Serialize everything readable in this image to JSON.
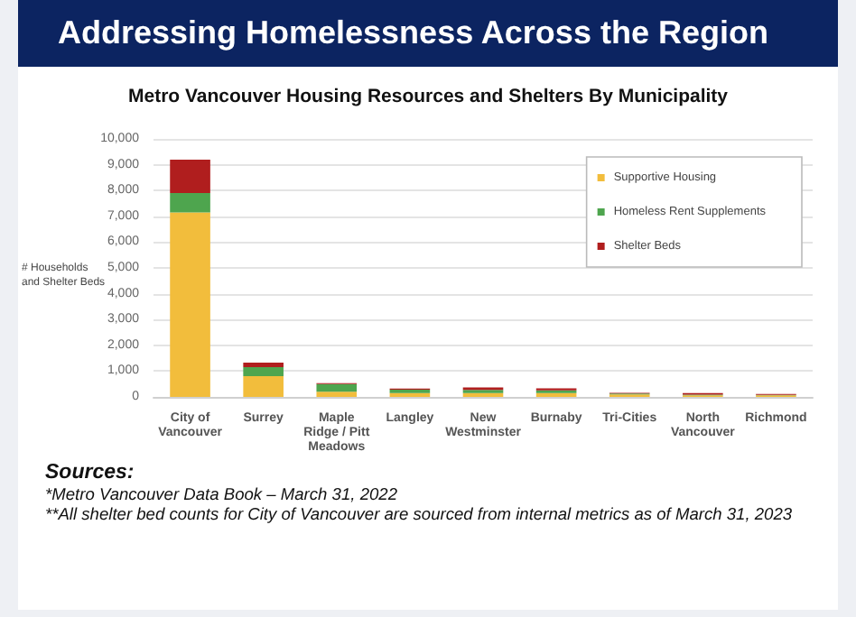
{
  "chart_data": {
    "type": "bar",
    "title": "Addressing Homelessness Across the Region",
    "subtitle": "Metro Vancouver Housing Resources and Shelters By Municipality",
    "ylabel": "# Households\nand Shelter Beds",
    "categories": [
      "City of\nVancouver",
      "Surrey",
      "Maple\nRidge / Pitt\nMeadows",
      "Langley",
      "New\nWestminster",
      "Burnaby",
      "Tri-Cities",
      "North\nVancouver",
      "Richmond"
    ],
    "series": [
      {
        "name": "Supportive Housing",
        "color": "#f2bd3c",
        "values": [
          7150,
          800,
          200,
          150,
          150,
          150,
          100,
          60,
          60
        ]
      },
      {
        "name": "Homeless Rent Supplements",
        "color": "#4ea54e",
        "values": [
          750,
          350,
          300,
          130,
          120,
          100,
          30,
          30,
          20
        ]
      },
      {
        "name": "Shelter Beds",
        "color": "#b01e1e",
        "values": [
          1300,
          180,
          30,
          40,
          100,
          80,
          30,
          60,
          30
        ]
      }
    ],
    "stacked": true,
    "ylim": [
      0,
      10000
    ],
    "yticks": [
      0,
      {
        "value": 1000,
        "label": "1,000"
      },
      {
        "value": 2000,
        "label": "2,000"
      },
      {
        "value": 3000,
        "label": "3,000"
      },
      {
        "value": 4000,
        "label": "4,000"
      },
      {
        "value": 5000,
        "label": "5,000"
      },
      {
        "value": 6000,
        "label": "6,000"
      },
      {
        "value": 7000,
        "label": "7,000"
      },
      {
        "value": 8000,
        "label": "8,000"
      },
      {
        "value": 9000,
        "label": "9,000"
      },
      {
        "value": 10000,
        "label": "10,000"
      }
    ],
    "grid": "y",
    "legend": "top right",
    "annotations": [
      "Sources:",
      "*Metro Vancouver Data Book – March 31, 2022",
      "**All shelter bed counts  for City of Vancouver are sourced from internal metrics as of March 31, 2023"
    ]
  }
}
